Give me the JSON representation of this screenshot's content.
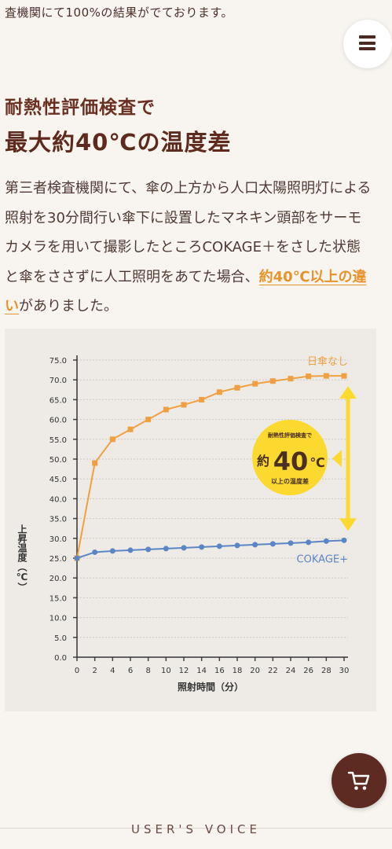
{
  "top_text": "査機関にて100%の結果がでております。",
  "menu": {
    "icon": "hamburger-menu-icon"
  },
  "heading": {
    "line1": "耐熱性評価検査で",
    "line2": "最大約40℃の温度差"
  },
  "paragraph": {
    "text_before": "第三者検査機関にて、傘の上方から人口太陽照明灯による照射を30分間行い傘下に設置したマネキン頭部をサーモカメラを用いて撮影したところCOKAGE＋をさした状態と傘をささずに人工照明をあてた場合、",
    "highlight": "約40℃以上の違い",
    "text_after": "がありました。"
  },
  "chart_data": {
    "type": "line",
    "x": [
      0,
      2,
      4,
      6,
      8,
      10,
      12,
      14,
      16,
      18,
      20,
      22,
      24,
      26,
      28,
      30
    ],
    "xticks": [
      "0",
      "2",
      "4",
      "6",
      "8",
      "10",
      "12",
      "14",
      "16",
      "18",
      "20",
      "22",
      "24",
      "26",
      "28",
      "30"
    ],
    "yticks": [
      "0.0",
      "5.0",
      "10.0",
      "15.0",
      "20.0",
      "25.0",
      "30.0",
      "35.0",
      "40.0",
      "45.0",
      "50.0",
      "55.0",
      "60.0",
      "65.0",
      "70.0",
      "75.0"
    ],
    "ylim": [
      0,
      75
    ],
    "xlim": [
      0,
      30
    ],
    "xlabel": "照射時間（分）",
    "ylabel": "上昇温度（℃）",
    "grid": true,
    "series": [
      {
        "name": "日傘なし",
        "color": "#f0a040",
        "values": [
          25.0,
          49.0,
          55.0,
          57.5,
          60.0,
          62.5,
          63.7,
          65.0,
          66.9,
          68.0,
          69.0,
          69.7,
          70.3,
          70.9,
          71.0,
          71.0
        ]
      },
      {
        "name": "COKAGE+",
        "color": "#5b86c5",
        "values": [
          25.0,
          26.5,
          26.8,
          27.0,
          27.2,
          27.4,
          27.6,
          27.8,
          28.0,
          28.2,
          28.4,
          28.6,
          28.8,
          29.0,
          29.3,
          29.5
        ]
      }
    ],
    "annotation": {
      "small_top": "耐熱性評価検査で",
      "prefix": "約",
      "big": "40",
      "unit": "℃",
      "small_bottom": "以上の温度差",
      "color": "#fbd92e"
    }
  },
  "cart": {
    "icon": "cart-icon"
  },
  "footer_heading": "USER'S VOICE"
}
